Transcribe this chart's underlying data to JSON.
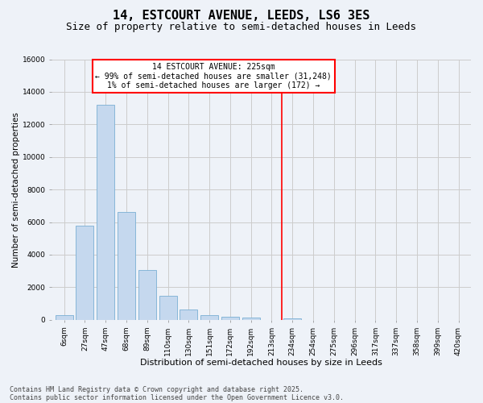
{
  "title": "14, ESTCOURT AVENUE, LEEDS, LS6 3ES",
  "subtitle": "Size of property relative to semi-detached houses in Leeds",
  "xlabel": "Distribution of semi-detached houses by size in Leeds",
  "ylabel": "Number of semi-detached properties",
  "categories": [
    "6sqm",
    "27sqm",
    "47sqm",
    "68sqm",
    "89sqm",
    "110sqm",
    "130sqm",
    "151sqm",
    "172sqm",
    "192sqm",
    "213sqm",
    "234sqm",
    "254sqm",
    "275sqm",
    "296sqm",
    "317sqm",
    "337sqm",
    "358sqm",
    "399sqm",
    "420sqm"
  ],
  "values": [
    300,
    5800,
    13200,
    6600,
    3050,
    1500,
    620,
    290,
    170,
    130,
    0,
    70,
    0,
    0,
    0,
    0,
    0,
    0,
    0,
    0
  ],
  "bar_color": "#c5d8ee",
  "bar_edge_color": "#7aafd4",
  "grid_color": "#cccccc",
  "bg_color": "#eef2f8",
  "vline_color": "red",
  "vline_x": 10.5,
  "annotation_title": "14 ESTCOURT AVENUE: 225sqm",
  "annotation_line1": "← 99% of semi-detached houses are smaller (31,248)",
  "annotation_line2": "1% of semi-detached houses are larger (172) →",
  "ylim": [
    0,
    16000
  ],
  "yticks": [
    0,
    2000,
    4000,
    6000,
    8000,
    10000,
    12000,
    14000,
    16000
  ],
  "footer1": "Contains HM Land Registry data © Crown copyright and database right 2025.",
  "footer2": "Contains public sector information licensed under the Open Government Licence v3.0.",
  "title_fontsize": 11,
  "subtitle_fontsize": 9,
  "axis_label_fontsize": 8,
  "tick_fontsize": 6.5,
  "footer_fontsize": 6,
  "annotation_fontsize": 7,
  "ylabel_fontsize": 7.5
}
